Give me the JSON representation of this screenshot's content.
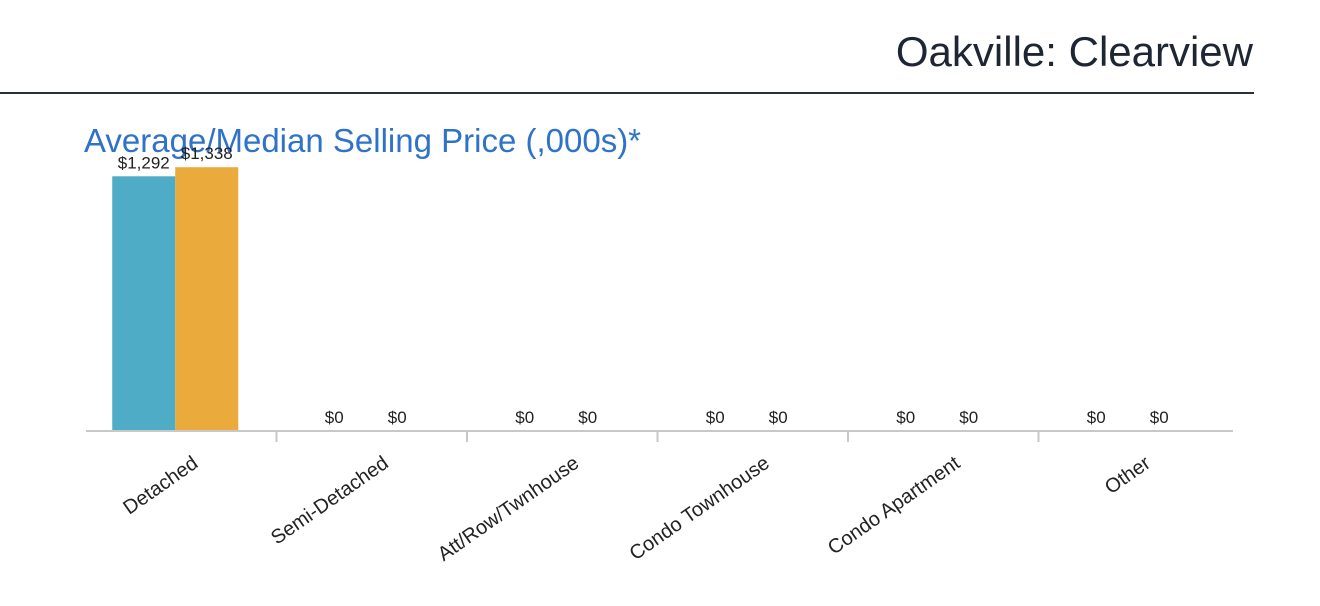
{
  "header": {
    "page_title": "Oakville: Clearview",
    "section_title": "Average/Median Selling Price (,000s)*"
  },
  "chart_data": {
    "type": "bar",
    "categories": [
      "Detached",
      "Semi-Detached",
      "Att/Row/Twnhouse",
      "Condo Townhouse",
      "Condo Apartment",
      "Other"
    ],
    "series": [
      {
        "values": [
          1292,
          0,
          0,
          0,
          0,
          0
        ],
        "labels": [
          "$1,292",
          "$0",
          "$0",
          "$0",
          "$0",
          "$0"
        ],
        "color": "#4eacc6"
      },
      {
        "values": [
          1338,
          0,
          0,
          0,
          0,
          0
        ],
        "labels": [
          "$1,338",
          "$0",
          "$0",
          "$0",
          "$0",
          "$0"
        ],
        "color": "#eaaa3c"
      }
    ],
    "ylim": [
      0,
      1400
    ],
    "grid": false,
    "legend": "none",
    "axis_color": "#c8c8c8"
  }
}
